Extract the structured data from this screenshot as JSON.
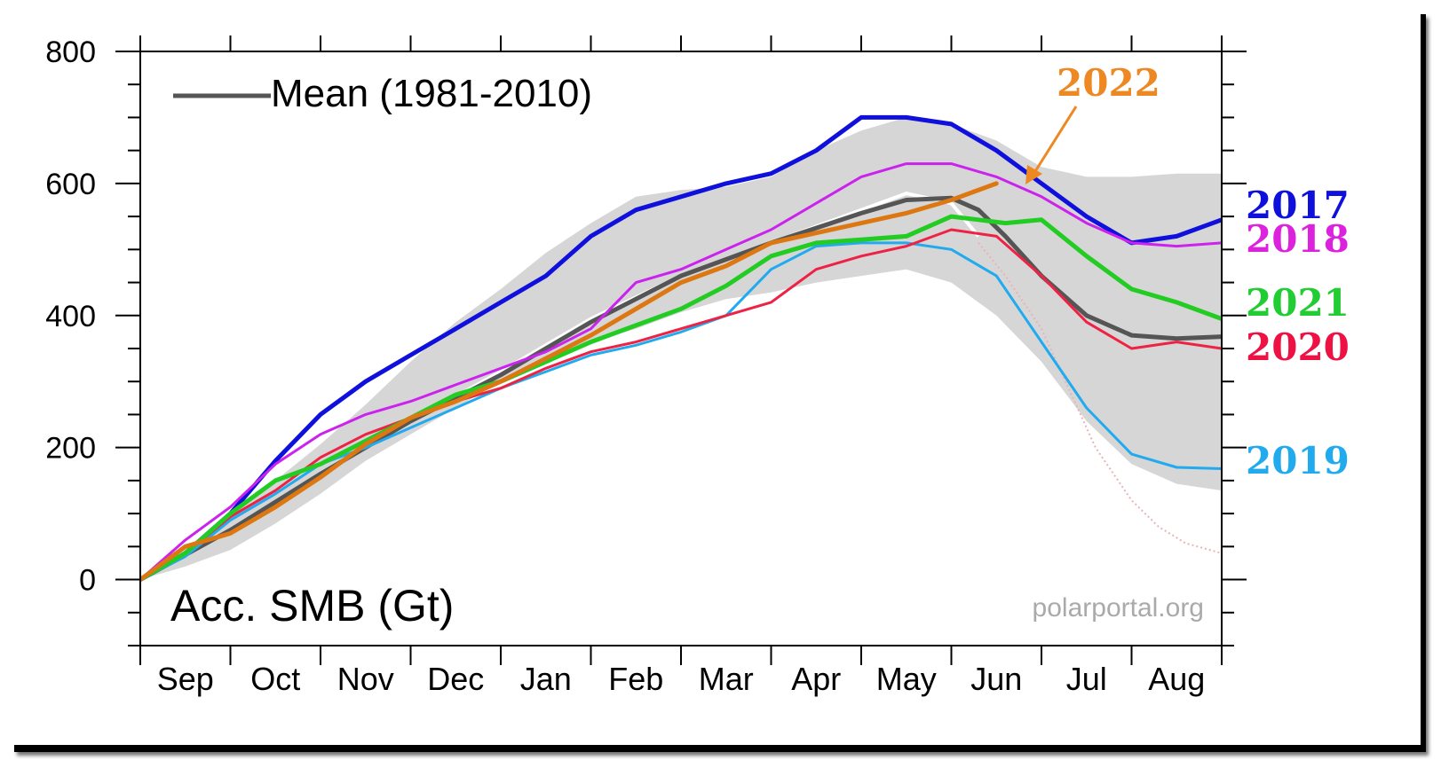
{
  "chart_data": {
    "type": "line",
    "title": "",
    "legend_text": "Mean (1981-2010)",
    "ylabel": "Acc. SMB (Gt)",
    "watermark": "polarportal.org",
    "ylim": [
      -100,
      800
    ],
    "yticks": [
      "0",
      "200",
      "400",
      "600",
      "800"
    ],
    "ytick_values": [
      0,
      200,
      400,
      600,
      800
    ],
    "months": [
      "Sep",
      "Oct",
      "Nov",
      "Dec",
      "Jan",
      "Feb",
      "Mar",
      "Apr",
      "May",
      "Jun",
      "Jul",
      "Aug"
    ],
    "x_unit": "month index from 1 Sep (0-12)",
    "band": {
      "x": [
        0,
        0.5,
        1,
        1.5,
        2,
        2.5,
        3,
        3.5,
        4,
        4.5,
        5,
        5.5,
        6,
        6.5,
        7,
        7.5,
        8,
        8.5,
        9,
        9.5,
        10,
        10.5,
        11,
        11.5,
        12
      ],
      "upper": [
        0,
        45,
        95,
        150,
        205,
        265,
        330,
        390,
        440,
        495,
        540,
        580,
        590,
        595,
        610,
        650,
        680,
        700,
        690,
        665,
        625,
        610,
        610,
        615,
        615
      ],
      "lower": [
        0,
        20,
        45,
        85,
        130,
        180,
        220,
        260,
        300,
        330,
        360,
        380,
        405,
        425,
        435,
        450,
        460,
        470,
        450,
        400,
        330,
        240,
        175,
        145,
        135
      ]
    },
    "mean": {
      "name": "Mean (1981-2010)",
      "color": "#555555",
      "x": [
        0,
        1,
        2,
        3,
        4,
        5,
        5.5,
        6,
        7,
        8,
        8.5,
        9,
        9.3,
        9.6,
        10,
        10.5,
        11,
        11.5,
        12
      ],
      "y": [
        0,
        75,
        160,
        240,
        310,
        390,
        425,
        460,
        510,
        555,
        575,
        578,
        560,
        520,
        460,
        400,
        370,
        365,
        368
      ]
    },
    "series": [
      {
        "name": "2017",
        "color": "#1010dd",
        "label_color": "#1010dd",
        "x": [
          0,
          0.5,
          1,
          1.5,
          2,
          2.5,
          3,
          3.5,
          4,
          4.5,
          5,
          5.5,
          6,
          6.5,
          7,
          7.5,
          8,
          8.5,
          9,
          9.5,
          10,
          10.5,
          11,
          11.5,
          12
        ],
        "y": [
          0,
          40,
          100,
          180,
          250,
          300,
          340,
          380,
          420,
          460,
          520,
          560,
          580,
          600,
          615,
          650,
          700,
          700,
          690,
          650,
          600,
          550,
          510,
          520,
          545
        ]
      },
      {
        "name": "2018",
        "color": "#cc22ee",
        "label_color": "#dd22dd",
        "x": [
          0,
          0.5,
          1,
          1.5,
          2,
          2.5,
          3,
          3.5,
          4,
          4.5,
          5,
          5.5,
          6,
          6.5,
          7,
          7.5,
          8,
          8.5,
          9,
          9.5,
          10,
          10.5,
          11,
          11.5,
          12
        ],
        "y": [
          0,
          60,
          110,
          175,
          220,
          250,
          270,
          295,
          320,
          345,
          380,
          450,
          470,
          500,
          530,
          570,
          610,
          630,
          630,
          610,
          580,
          540,
          510,
          505,
          510
        ]
      },
      {
        "name": "2019",
        "color": "#22aaee",
        "label_color": "#22aaee",
        "x": [
          0,
          0.5,
          1,
          1.5,
          2,
          2.5,
          3,
          3.5,
          4,
          4.5,
          5,
          5.5,
          6,
          6.5,
          7,
          7.5,
          8,
          8.5,
          9,
          9.5,
          10,
          10.5,
          11,
          11.5,
          12
        ],
        "y": [
          0,
          35,
          90,
          130,
          175,
          200,
          230,
          260,
          290,
          315,
          340,
          355,
          375,
          400,
          470,
          505,
          510,
          510,
          500,
          460,
          360,
          260,
          190,
          170,
          168
        ]
      },
      {
        "name": "2020",
        "color": "#ee2244",
        "label_color": "#ee1144",
        "x": [
          0,
          0.5,
          1,
          1.5,
          2,
          2.5,
          3,
          3.5,
          4,
          4.5,
          5,
          5.5,
          6,
          6.5,
          7,
          7.5,
          8,
          8.5,
          9,
          9.5,
          10,
          10.5,
          11,
          11.5,
          12
        ],
        "y": [
          0,
          40,
          95,
          135,
          185,
          220,
          245,
          270,
          290,
          320,
          345,
          360,
          380,
          400,
          420,
          470,
          490,
          505,
          530,
          520,
          460,
          390,
          350,
          360,
          350
        ]
      },
      {
        "name": "2021",
        "color": "#22cc22",
        "label_color": "#22cc33",
        "x": [
          0,
          0.5,
          1,
          1.5,
          2,
          2.5,
          3,
          3.5,
          4,
          4.5,
          5,
          5.5,
          6,
          6.5,
          7,
          7.5,
          8,
          8.5,
          9,
          9.3,
          9.6,
          10,
          10.5,
          11,
          11.5,
          12
        ],
        "y": [
          0,
          40,
          100,
          150,
          175,
          210,
          245,
          280,
          300,
          330,
          360,
          385,
          410,
          445,
          490,
          510,
          515,
          520,
          550,
          545,
          540,
          545,
          490,
          440,
          420,
          395
        ]
      },
      {
        "name": "2022",
        "color": "#dd7711",
        "label_color": "#ee8822",
        "x": [
          0,
          0.5,
          1,
          1.5,
          2,
          2.5,
          3,
          3.5,
          4,
          4.5,
          5,
          5.5,
          6,
          6.5,
          7,
          7.5,
          8,
          8.5,
          9,
          9.5
        ],
        "y": [
          0,
          50,
          70,
          110,
          155,
          205,
          245,
          270,
          300,
          335,
          370,
          410,
          450,
          475,
          510,
          525,
          540,
          555,
          575,
          600
        ]
      }
    ],
    "white_segment": {
      "color": "#ffffff",
      "x": [
        0,
        1,
        2,
        3,
        4,
        5,
        6,
        7,
        8,
        8.5,
        9,
        9.3
      ],
      "y": [
        0,
        75,
        160,
        240,
        315,
        395,
        460,
        510,
        560,
        585,
        570,
        520
      ]
    },
    "dotted_tail": {
      "color": "#e8b4b4",
      "x": [
        9.3,
        9.6,
        10,
        10.3,
        10.6,
        11,
        11.3,
        11.6,
        12
      ],
      "y": [
        510,
        460,
        380,
        290,
        200,
        120,
        80,
        55,
        40
      ]
    },
    "annotation": {
      "text": "2022",
      "color": "#ee8822"
    }
  }
}
